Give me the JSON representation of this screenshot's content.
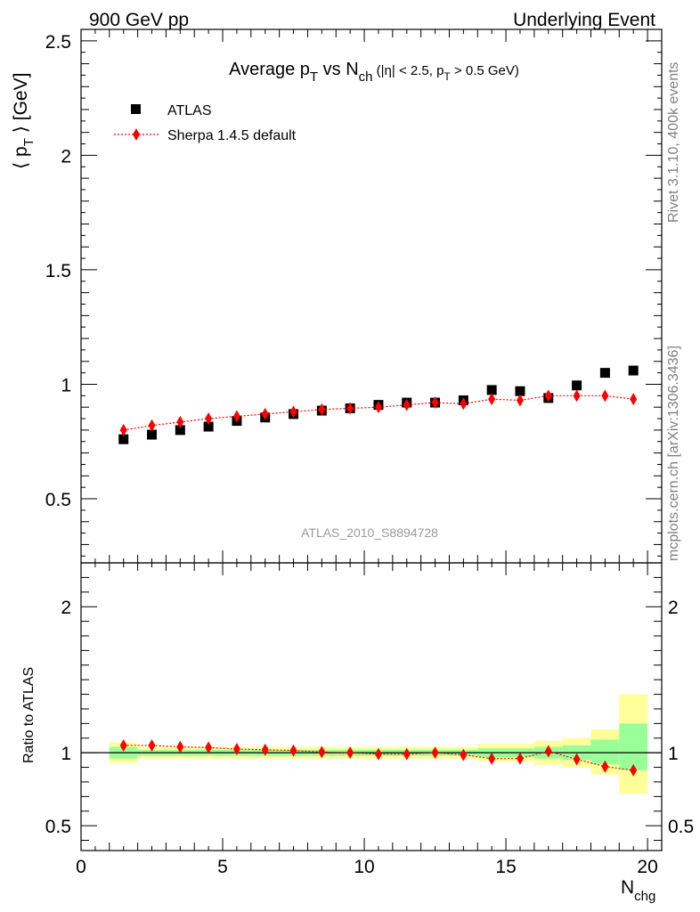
{
  "header": {
    "left": "900 GeV pp",
    "right": "Underlying Event"
  },
  "side_labels": {
    "rivet": "Rivet 3.1.10,  400k events",
    "mcplots": "mcplots.cern.ch [arXiv:1306.3436]"
  },
  "watermark": "ATLAS_2010_S8894728",
  "colors": {
    "data": "#000000",
    "mc": "#ff0000",
    "band_inner": "#99ff99",
    "band_outer": "#ffff99"
  },
  "chart_data": [
    {
      "type": "scatter",
      "title": "Average p_T vs N_ch (|η| < 2.5, p_T > 0.5 GeV)",
      "ylabel": "⟨ p_T ⟩ [GeV]",
      "xlim": [
        0,
        20.5
      ],
      "ylim": [
        0.22,
        2.55
      ],
      "yticks": [
        0.5,
        1,
        1.5,
        2,
        2.5
      ],
      "ytick_labels": [
        "0.5",
        "1",
        "1.5",
        "2",
        "2.5"
      ],
      "legend": {
        "position": "top-left",
        "entries": [
          "ATLAS",
          "Sherpa 1.4.5 default"
        ]
      },
      "series": [
        {
          "name": "ATLAS",
          "marker": "square",
          "x": [
            1.5,
            2.5,
            3.5,
            4.5,
            5.5,
            6.5,
            7.5,
            8.5,
            9.5,
            10.5,
            11.5,
            12.5,
            13.5,
            14.5,
            15.5,
            16.5,
            17.5,
            18.5,
            19.5
          ],
          "y": [
            0.76,
            0.78,
            0.8,
            0.815,
            0.84,
            0.855,
            0.87,
            0.885,
            0.895,
            0.91,
            0.92,
            0.92,
            0.93,
            0.975,
            0.97,
            0.94,
            0.995,
            1.05,
            1.06
          ]
        },
        {
          "name": "Sherpa 1.4.5 default",
          "marker": "diamond",
          "line": "dotted",
          "x": [
            1.5,
            2.5,
            3.5,
            4.5,
            5.5,
            6.5,
            7.5,
            8.5,
            9.5,
            10.5,
            11.5,
            12.5,
            13.5,
            14.5,
            15.5,
            16.5,
            17.5,
            18.5,
            19.5
          ],
          "y": [
            0.8,
            0.82,
            0.835,
            0.85,
            0.86,
            0.87,
            0.88,
            0.89,
            0.895,
            0.9,
            0.91,
            0.92,
            0.915,
            0.935,
            0.93,
            0.95,
            0.95,
            0.95,
            0.935
          ]
        }
      ]
    },
    {
      "type": "scatter",
      "ylabel": "Ratio to ATLAS",
      "xlabel": "N_chg",
      "xlim": [
        0,
        20.5
      ],
      "ylim": [
        0.33,
        2.3
      ],
      "yticks": [
        0.5,
        1,
        2
      ],
      "ytick_labels": [
        "0.5",
        "1",
        "2"
      ],
      "xticks": [
        0,
        5,
        10,
        15,
        20
      ],
      "xtick_labels": [
        "0",
        "5",
        "10",
        "15",
        "20"
      ],
      "bands": {
        "edges": [
          1,
          2,
          3,
          4,
          5,
          6,
          7,
          8,
          9,
          10,
          11,
          12,
          13,
          14,
          15,
          16,
          17,
          18,
          19,
          20
        ],
        "inner_lo": [
          0.96,
          0.98,
          0.98,
          0.98,
          0.98,
          0.98,
          0.98,
          0.98,
          0.98,
          0.98,
          0.98,
          0.98,
          0.98,
          0.97,
          0.97,
          0.96,
          0.95,
          0.92,
          0.88
        ],
        "inner_hi": [
          1.04,
          1.02,
          1.02,
          1.02,
          1.02,
          1.02,
          1.02,
          1.02,
          1.02,
          1.02,
          1.02,
          1.02,
          1.02,
          1.03,
          1.03,
          1.04,
          1.05,
          1.09,
          1.2
        ],
        "outer_lo": [
          0.93,
          0.96,
          0.96,
          0.96,
          0.96,
          0.96,
          0.96,
          0.96,
          0.96,
          0.96,
          0.96,
          0.96,
          0.96,
          0.94,
          0.94,
          0.92,
          0.9,
          0.85,
          0.72
        ],
        "outer_hi": [
          1.07,
          1.04,
          1.04,
          1.04,
          1.04,
          1.04,
          1.04,
          1.04,
          1.04,
          1.04,
          1.04,
          1.04,
          1.04,
          1.06,
          1.06,
          1.08,
          1.1,
          1.16,
          1.4
        ]
      },
      "series": [
        {
          "name": "Sherpa 1.4.5 default",
          "marker": "diamond",
          "line": "dotted",
          "x": [
            1.5,
            2.5,
            3.5,
            4.5,
            5.5,
            6.5,
            7.5,
            8.5,
            9.5,
            10.5,
            11.5,
            12.5,
            13.5,
            14.5,
            15.5,
            16.5,
            17.5,
            18.5,
            19.5
          ],
          "y": [
            1.05,
            1.05,
            1.04,
            1.035,
            1.025,
            1.02,
            1.015,
            1.005,
            1.0,
            0.99,
            0.99,
            1.0,
            0.985,
            0.96,
            0.96,
            1.01,
            0.955,
            0.905,
            0.88
          ]
        }
      ]
    }
  ]
}
